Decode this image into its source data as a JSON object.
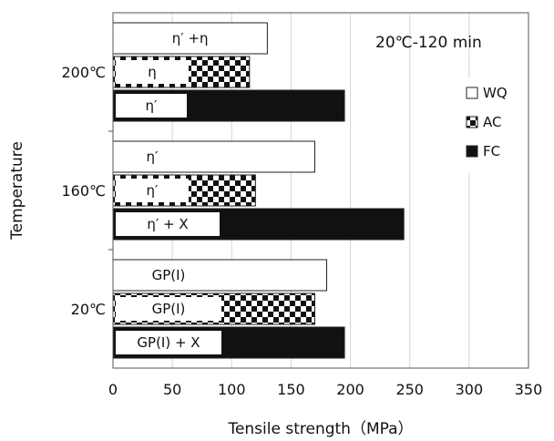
{
  "chart_data": {
    "type": "bar",
    "orientation": "horizontal",
    "ylabel": "Temperature",
    "xlabel": "Tensile strength（MPa）",
    "xlim": [
      0,
      350
    ],
    "xticks": [
      0,
      50,
      100,
      150,
      200,
      250,
      300,
      350
    ],
    "grid": true,
    "annotation": "20℃-120 min",
    "legend_position": "right",
    "categories": [
      "200℃",
      "160℃",
      "20℃"
    ],
    "series": [
      {
        "name": "WQ",
        "pattern": "white",
        "values": [
          130,
          170,
          180
        ],
        "bar_labels": [
          "η′ +η",
          "η′",
          "GP(I)"
        ]
      },
      {
        "name": "AC",
        "pattern": "checker",
        "values": [
          115,
          120,
          170
        ],
        "bar_labels": [
          "η",
          "η′",
          "GP(I)"
        ]
      },
      {
        "name": "FC",
        "pattern": "black",
        "values": [
          195,
          245,
          195
        ],
        "bar_labels": [
          "η′",
          "η′ + X",
          "GP(I) + X"
        ]
      }
    ],
    "colors": {
      "bar_fill_dark": "#111111",
      "bar_fill_light": "#ffffff",
      "grid": "#d6d6d6",
      "frame": "#555555"
    }
  }
}
